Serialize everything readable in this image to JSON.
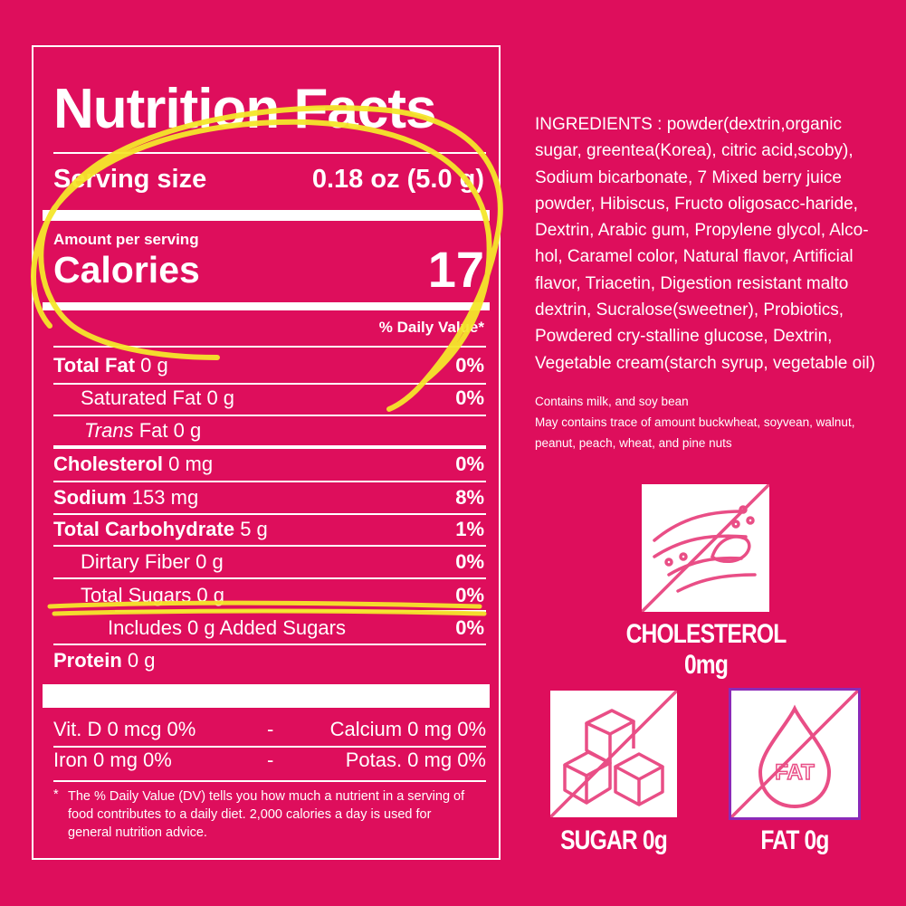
{
  "nutrition": {
    "title": "Nutrition Facts",
    "serving_label": "Serving size",
    "serving_value": "0.18 oz (5.0 g)",
    "amount_per_serving": "Amount per serving",
    "calories_label": "Calories",
    "calories_value": "17",
    "daily_value_header": "% Daily Value*",
    "rows": [
      {
        "label": "Total Fat",
        "amount": "0 g",
        "pct": "0%"
      },
      {
        "label": "Saturated Fat",
        "amount": "0 g",
        "pct": "0%"
      },
      {
        "label_italic": "Trans",
        "label": "Fat",
        "amount": "0 g"
      },
      {
        "label": "Cholesterol",
        "amount": "0 mg",
        "pct": "0%"
      },
      {
        "label": "Sodium",
        "amount": "153 mg",
        "pct": "8%"
      },
      {
        "label": "Total Carbohydrate",
        "amount": "5 g",
        "pct": "1%"
      },
      {
        "label": "Dirtary Fiber",
        "amount": "0 g",
        "pct": "0%"
      },
      {
        "label": "Total Sugars",
        "amount": "0 g",
        "pct": "0%"
      },
      {
        "label": "Includes 0 g Added Sugars",
        "pct": "0%"
      },
      {
        "label": "Protein",
        "amount": "0 g"
      }
    ],
    "vitamins": {
      "vit_d": "Vit. D 0 mcg 0%",
      "dash1": "-",
      "calcium": "Calcium 0 mg 0%",
      "iron": "Iron 0 mg 0%",
      "dash2": "-",
      "potas": "Potas. 0 mg 0%"
    },
    "footnote_star": "*",
    "footnote": "The % Daily Value (DV) tells you how much a nutrient in a serving of food contributes to a daily diet. 2,000 calories a day is used for general nutrition advice."
  },
  "ingredients": {
    "label": "INGREDIENTS",
    "text": " : powder(dextrin,organic sugar, greentea(Korea), citric acid,scoby), Sodium bicarbonate, 7 Mixed berry juice powder, Hibiscus, Fructo oligosacc-haride, Dextrin, Arabic gum, Propylene glycol, Alco-hol, Caramel color, Natural flavor, Artificial flavor, Triacetin, Digestion resistant malto dextrin, Sucralose(sweetner), Probiotics, Powdered cry-stalline glucose, Dextrin, Vegetable cream(starch syrup, vegetable oil)"
  },
  "allergens": {
    "line1": "Contains milk, and soy bean",
    "line2": "May contains trace of amount buckwheat, soyvean, walnut, peanut, peach, wheat, and pine nuts"
  },
  "badges": {
    "cholesterol": "CHOLESTEROL 0mg",
    "sugar": "SUGAR 0g",
    "fat": "FAT 0g",
    "fat_icon_text": "FAT"
  },
  "colors": {
    "background": "#DE0E5C",
    "icon_pink": "#E94E86",
    "highlight_yellow": "#F4E72A"
  }
}
